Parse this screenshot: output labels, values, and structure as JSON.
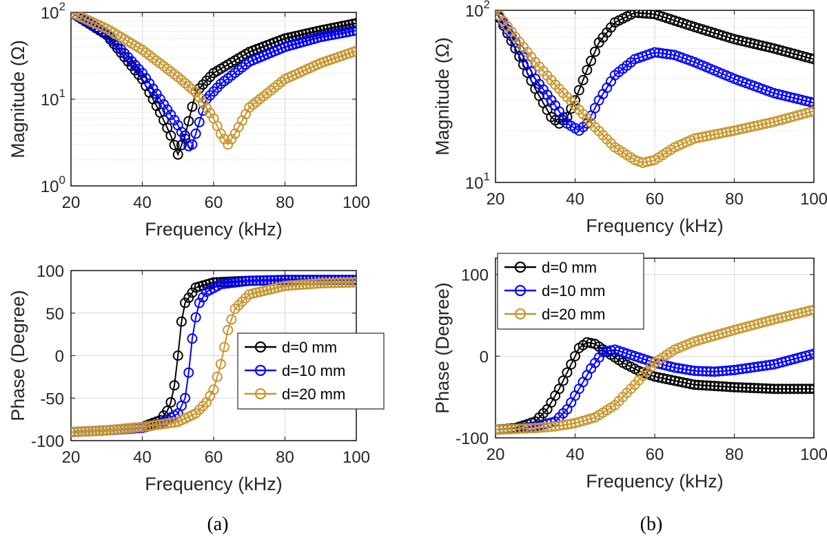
{
  "colors": {
    "d0": "#000000",
    "d10": "#0000ff",
    "d20": "#c8962e"
  },
  "captions": {
    "a": "(a)",
    "b": "(b)"
  },
  "chart_data": [
    {
      "id": "a_mag",
      "type": "line",
      "log_y": true,
      "xlabel": "Frequency (kHz)",
      "ylabel": "Magnitude (Ω)",
      "xlim": [
        20,
        100
      ],
      "ylim": [
        1,
        100
      ],
      "xticks": [
        20,
        40,
        60,
        80,
        100
      ],
      "yticks": [
        {
          "v": 1,
          "base": "10",
          "exp": "0"
        },
        {
          "v": 10,
          "base": "10",
          "exp": "1"
        },
        {
          "v": 100,
          "base": "10",
          "exp": "2"
        }
      ],
      "grid": true,
      "minor_grid": true,
      "legend": false,
      "series": [
        {
          "name": "d=0 mm",
          "color": "#000000",
          "x": [
            20,
            30,
            40,
            45,
            48,
            50,
            52,
            55,
            60,
            70,
            80,
            90,
            100
          ],
          "y": [
            100,
            55,
            17,
            7,
            3.8,
            2.3,
            3.8,
            12,
            20,
            35,
            50,
            62,
            75
          ]
        },
        {
          "name": "d=10 mm",
          "color": "#0000ff",
          "x": [
            20,
            30,
            40,
            45,
            50,
            52,
            53.5,
            55,
            58,
            62,
            70,
            80,
            90,
            100
          ],
          "y": [
            100,
            57,
            20,
            10,
            5,
            3.5,
            2.6,
            4,
            10,
            15,
            27,
            40,
            52,
            62
          ]
        },
        {
          "name": "d=20 mm",
          "color": "#c8962e",
          "x": [
            20,
            30,
            40,
            50,
            55,
            60,
            62,
            64,
            66,
            70,
            80,
            90,
            100
          ],
          "y": [
            100,
            65,
            37,
            18,
            12,
            6,
            4,
            3,
            4,
            8,
            17,
            26,
            36
          ]
        }
      ]
    },
    {
      "id": "b_mag",
      "type": "line",
      "log_y": true,
      "xlabel": "Frequency (kHz)",
      "ylabel": "Magnitude (Ω)",
      "xlim": [
        20,
        100
      ],
      "ylim": [
        10,
        100
      ],
      "xticks": [
        20,
        40,
        60,
        80,
        100
      ],
      "yticks": [
        {
          "v": 10,
          "base": "10",
          "exp": "1"
        },
        {
          "v": 100,
          "base": "10",
          "exp": "2"
        }
      ],
      "grid": true,
      "minor_grid": true,
      "legend": false,
      "series": [
        {
          "name": "d=0 mm",
          "color": "#000000",
          "x": [
            20,
            25,
            30,
            34,
            36,
            38,
            40,
            43,
            46,
            50,
            55,
            60,
            70,
            80,
            90,
            100
          ],
          "y": [
            100,
            60,
            35,
            24,
            22,
            24,
            30,
            45,
            65,
            85,
            97,
            95,
            80,
            68,
            60,
            52
          ]
        },
        {
          "name": "d=10 mm",
          "color": "#0000ff",
          "x": [
            20,
            25,
            30,
            35,
            38,
            41,
            43,
            46,
            50,
            55,
            60,
            65,
            70,
            80,
            90,
            100
          ],
          "y": [
            100,
            65,
            40,
            28,
            22,
            20,
            22,
            30,
            42,
            52,
            57,
            55,
            50,
            40,
            33,
            29
          ]
        },
        {
          "name": "d=20 mm",
          "color": "#c8962e",
          "x": [
            20,
            25,
            30,
            35,
            40,
            45,
            50,
            55,
            57,
            60,
            65,
            70,
            80,
            90,
            100
          ],
          "y": [
            100,
            70,
            50,
            37,
            28,
            21,
            16,
            13.5,
            13,
            13.5,
            16,
            18,
            20,
            22.5,
            26
          ]
        }
      ]
    },
    {
      "id": "a_phase",
      "type": "line",
      "log_y": false,
      "xlabel": "Frequency (kHz)",
      "ylabel": "Phase (Degree)",
      "xlim": [
        20,
        100
      ],
      "ylim": [
        -100,
        100
      ],
      "xticks": [
        20,
        40,
        60,
        80,
        100
      ],
      "yticks": [
        {
          "v": -100,
          "label": "-100"
        },
        {
          "v": -50,
          "label": "-50"
        },
        {
          "v": 0,
          "label": "0"
        },
        {
          "v": 50,
          "label": "50"
        },
        {
          "v": 100,
          "label": "100"
        }
      ],
      "grid": true,
      "minor_grid": false,
      "legend": "center-right",
      "series": [
        {
          "name": "d=0 mm",
          "color": "#000000",
          "x": [
            20,
            30,
            40,
            45,
            47,
            48,
            49,
            50,
            51,
            52,
            55,
            60,
            70,
            80,
            100
          ],
          "y": [
            -90,
            -88,
            -84,
            -76,
            -65,
            -55,
            -35,
            0,
            40,
            62,
            80,
            86,
            88,
            89,
            89
          ]
        },
        {
          "name": "d=10 mm",
          "color": "#0000ff",
          "x": [
            20,
            30,
            40,
            45,
            50,
            52,
            53,
            54,
            55,
            56,
            58,
            62,
            70,
            80,
            100
          ],
          "y": [
            -90,
            -88,
            -85,
            -80,
            -68,
            -50,
            -20,
            20,
            45,
            62,
            75,
            84,
            88,
            89,
            89
          ]
        },
        {
          "name": "d=20 mm",
          "color": "#c8962e",
          "x": [
            20,
            30,
            40,
            50,
            55,
            58,
            60,
            62,
            63,
            64,
            66,
            70,
            80,
            90,
            100
          ],
          "y": [
            -90,
            -88,
            -84,
            -78,
            -68,
            -55,
            -40,
            -10,
            10,
            30,
            55,
            72,
            82,
            85,
            86
          ]
        }
      ],
      "legend_entries": [
        "d=0 mm",
        "d=10 mm",
        "d=20 mm"
      ]
    },
    {
      "id": "b_phase",
      "type": "line",
      "log_y": false,
      "xlabel": "Frequency (kHz)",
      "ylabel": "Phase (Degree)",
      "xlim": [
        20,
        100
      ],
      "ylim": [
        -100,
        120
      ],
      "xticks": [
        20,
        40,
        60,
        80,
        100
      ],
      "yticks": [
        {
          "v": -100,
          "label": "-100"
        },
        {
          "v": 0,
          "label": "0"
        },
        {
          "v": 100,
          "label": "100"
        }
      ],
      "grid": true,
      "minor_grid": false,
      "legend": "top-left",
      "series": [
        {
          "name": "d=0 mm",
          "color": "#000000",
          "x": [
            20,
            25,
            30,
            33,
            36,
            39,
            41,
            43,
            45,
            48,
            52,
            56,
            60,
            65,
            70,
            80,
            90,
            100
          ],
          "y": [
            -90,
            -88,
            -80,
            -65,
            -40,
            -10,
            10,
            17,
            15,
            5,
            -8,
            -18,
            -25,
            -30,
            -35,
            -38,
            -40,
            -40
          ]
        },
        {
          "name": "d=10 mm",
          "color": "#0000ff",
          "x": [
            20,
            25,
            30,
            35,
            38,
            41,
            44,
            47,
            50,
            55,
            60,
            65,
            70,
            75,
            80,
            90,
            100
          ],
          "y": [
            -90,
            -89,
            -86,
            -80,
            -65,
            -40,
            -15,
            5,
            8,
            0,
            -8,
            -14,
            -18,
            -19,
            -17,
            -10,
            3
          ]
        },
        {
          "name": "d=20 mm",
          "color": "#c8962e",
          "x": [
            20,
            25,
            30,
            35,
            40,
            45,
            50,
            55,
            60,
            65,
            70,
            75,
            80,
            90,
            100
          ],
          "y": [
            -90,
            -89,
            -88,
            -86,
            -82,
            -75,
            -60,
            -35,
            -8,
            8,
            18,
            25,
            32,
            45,
            57
          ]
        }
      ],
      "legend_entries": [
        "d=0 mm",
        "d=10 mm",
        "d=20 mm"
      ]
    }
  ]
}
